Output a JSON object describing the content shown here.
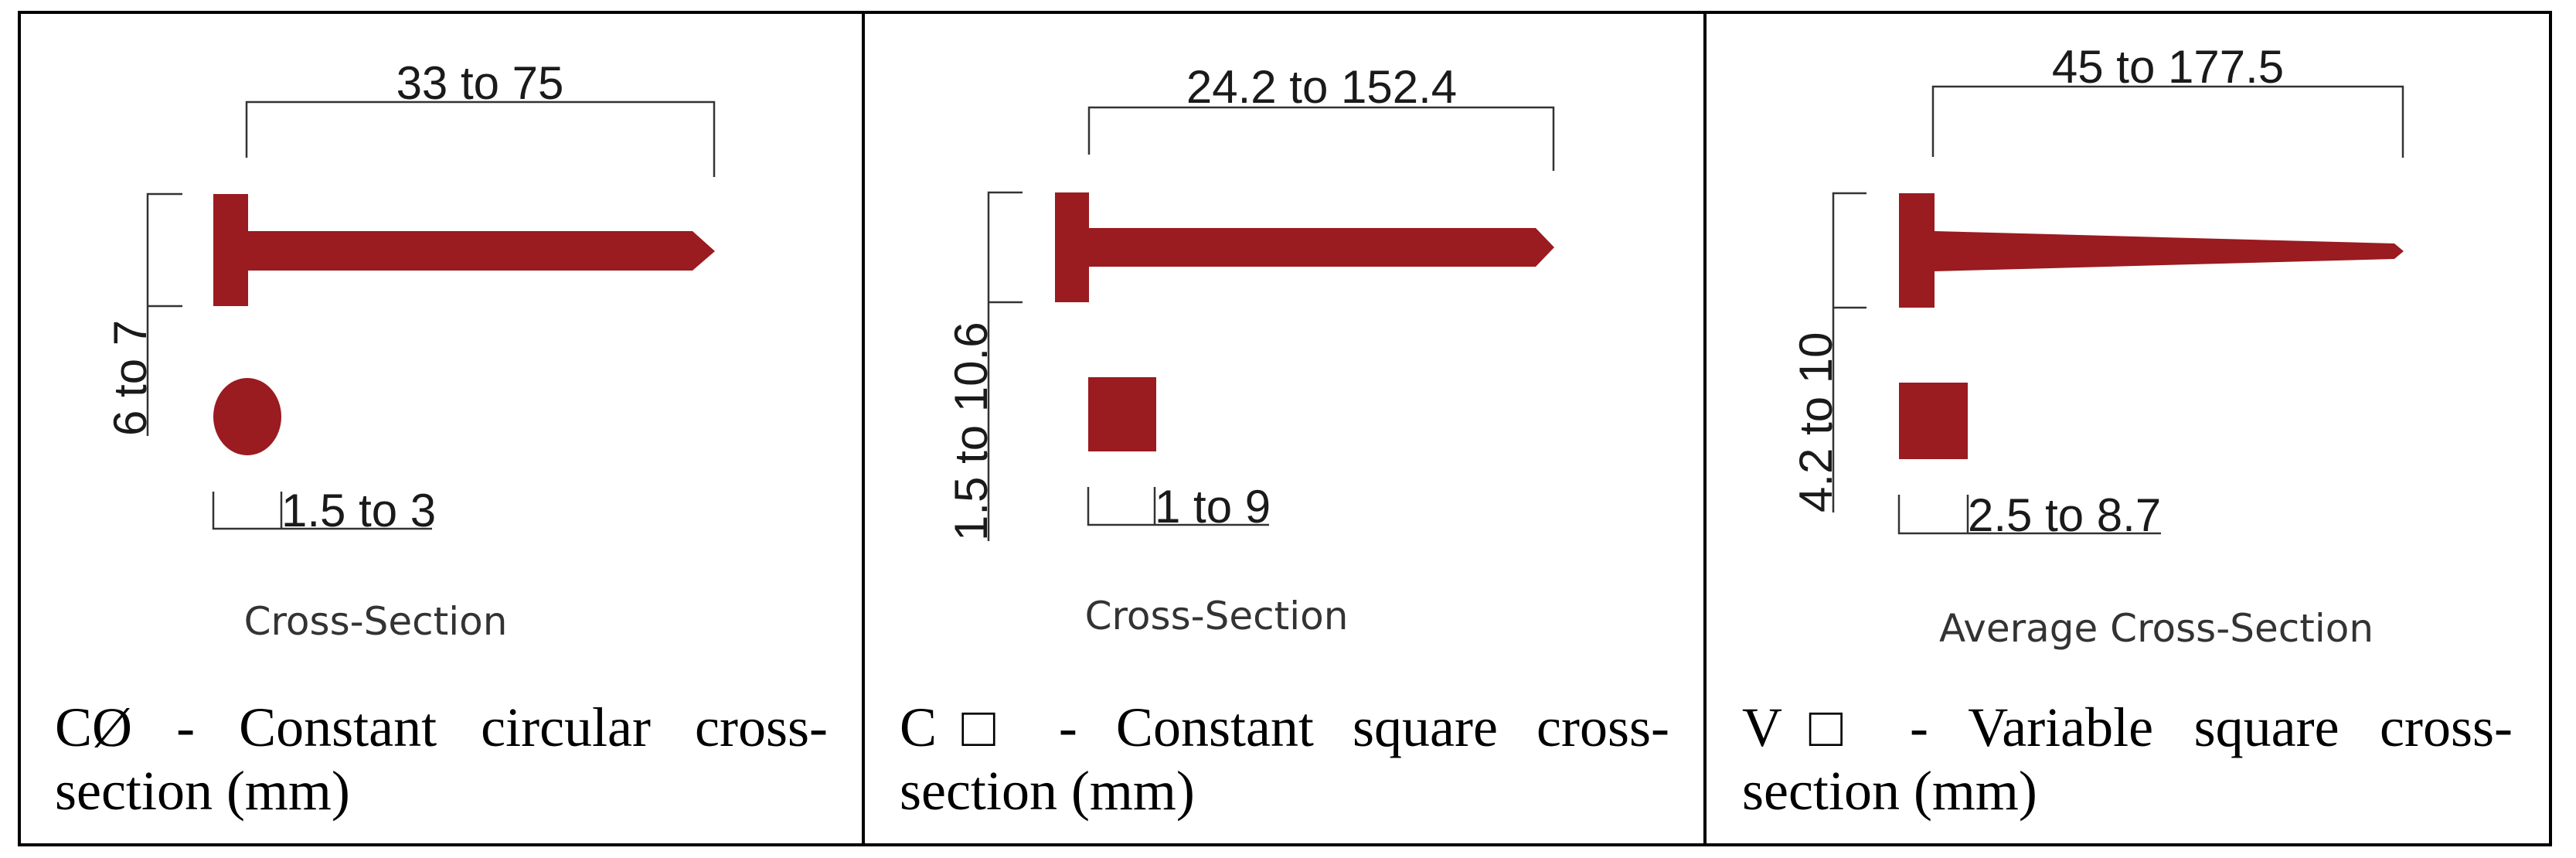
{
  "colors": {
    "nail": "#9a1b20",
    "line": "#333333",
    "border": "#000000"
  },
  "panels": [
    {
      "length": "33 to 75",
      "head": "6 to 7",
      "width": "1.5 to 3",
      "section_label": "Cross-Section",
      "section_shape": "circle",
      "caption_line1": "CØ - Constant circular cross-",
      "caption_line2": "section (mm)"
    },
    {
      "length": "24.2 to 152.4",
      "head": "1.5 to 10.6",
      "width": "1 to 9",
      "section_label": "Cross-Section",
      "section_shape": "square",
      "caption_line1": "C□ - Constant square cross-",
      "caption_line2": "section (mm)"
    },
    {
      "length": "45 to 177.5",
      "head": "4.2 to 10",
      "width": "2.5 to 8.7",
      "section_label": "Average Cross-Section",
      "section_shape": "square",
      "caption_line1": "V□ - Variable square cross-",
      "caption_line2": "section (mm)"
    }
  ]
}
